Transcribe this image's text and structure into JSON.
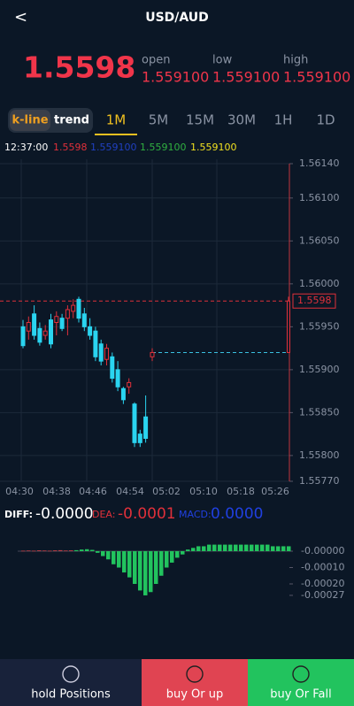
{
  "header": {
    "back": "<",
    "title": "USD/AUD"
  },
  "quote": {
    "price": "1.5598",
    "open_label": "open",
    "low_label": "low",
    "high_label": "high",
    "open": "1.559100",
    "low": "1.559100",
    "high": "1.559100"
  },
  "tabs": {
    "kline": "k-line",
    "trend": "trend",
    "periods": [
      "1M",
      "5M",
      "15M",
      "30M",
      "1H",
      "1D"
    ],
    "active": 0
  },
  "info": {
    "time": "12:37:00",
    "close": "1.5598",
    "ma1": "1.559100",
    "ma2": "1.559100",
    "ma3": "1.559100"
  },
  "kline": {
    "ylim": [
      1.5577,
      1.5614
    ],
    "yticks": [
      {
        "value": 1.5614,
        "label": "1.56140"
      },
      {
        "value": 1.561,
        "label": "1.56100"
      },
      {
        "value": 1.5605,
        "label": "1.56050"
      },
      {
        "value": 1.56,
        "label": "1.56000"
      },
      {
        "value": 1.5595,
        "label": "1.55950"
      },
      {
        "value": 1.559,
        "label": "1.55900"
      },
      {
        "value": 1.5585,
        "label": "1.55850"
      },
      {
        "value": 1.558,
        "label": "1.55800"
      },
      {
        "value": 1.5577,
        "label": "1.55770"
      }
    ],
    "xlabels": [
      "04:30",
      "04:38",
      "04:46",
      "04:54",
      "05:02",
      "05:10",
      "05:18",
      "05:26"
    ],
    "last_price": {
      "value": 1.5598,
      "label": "1.5598"
    },
    "candles": [
      {
        "o": 1.5595,
        "h": 1.55958,
        "l": 1.55925,
        "c": 1.55928
      },
      {
        "o": 1.55945,
        "h": 1.55962,
        "l": 1.55935,
        "c": 1.55955
      },
      {
        "o": 1.55965,
        "h": 1.55975,
        "l": 1.55935,
        "c": 1.5594
      },
      {
        "o": 1.55948,
        "h": 1.55955,
        "l": 1.55928,
        "c": 1.55932
      },
      {
        "o": 1.5594,
        "h": 1.55952,
        "l": 1.55935,
        "c": 1.55945
      },
      {
        "o": 1.55958,
        "h": 1.55965,
        "l": 1.55925,
        "c": 1.5593
      },
      {
        "o": 1.55955,
        "h": 1.55968,
        "l": 1.5594,
        "c": 1.55962
      },
      {
        "o": 1.5596,
        "h": 1.55965,
        "l": 1.55945,
        "c": 1.55948
      },
      {
        "o": 1.5596,
        "h": 1.55975,
        "l": 1.5594,
        "c": 1.5597
      },
      {
        "o": 1.55968,
        "h": 1.55982,
        "l": 1.5596,
        "c": 1.55975
      },
      {
        "o": 1.55982,
        "h": 1.55985,
        "l": 1.55955,
        "c": 1.5596
      },
      {
        "o": 1.55965,
        "h": 1.55972,
        "l": 1.55945,
        "c": 1.5595
      },
      {
        "o": 1.5595,
        "h": 1.5596,
        "l": 1.55935,
        "c": 1.5594
      },
      {
        "o": 1.55945,
        "h": 1.5595,
        "l": 1.5591,
        "c": 1.55915
      },
      {
        "o": 1.5593,
        "h": 1.55935,
        "l": 1.55905,
        "c": 1.5591
      },
      {
        "o": 1.55912,
        "h": 1.5593,
        "l": 1.55905,
        "c": 1.55925
      },
      {
        "o": 1.55915,
        "h": 1.5592,
        "l": 1.55885,
        "c": 1.5589
      },
      {
        "o": 1.559,
        "h": 1.5591,
        "l": 1.55875,
        "c": 1.5588
      },
      {
        "o": 1.55878,
        "h": 1.5588,
        "l": 1.5586,
        "c": 1.55865
      },
      {
        "o": 1.5588,
        "h": 1.5589,
        "l": 1.55872,
        "c": 1.55885
      },
      {
        "o": 1.5586,
        "h": 1.55862,
        "l": 1.5581,
        "c": 1.55815
      },
      {
        "o": 1.55825,
        "h": 1.5583,
        "l": 1.5581,
        "c": 1.55815
      },
      {
        "o": 1.55845,
        "h": 1.5587,
        "l": 1.55815,
        "c": 1.5582
      },
      {
        "o": 1.55915,
        "h": 1.55925,
        "l": 1.5591,
        "c": 1.5592
      }
    ],
    "last_candle": {
      "o": 1.5592,
      "h": 1.55985,
      "l": 1.5592,
      "c": 1.5598
    }
  },
  "macd": {
    "diff_label": "DIFF:",
    "diff": "-0.0000",
    "dea_label": "DEA:",
    "dea": "-0.0001",
    "macd_label": "MACD:",
    "macd": "0.0000",
    "ylim": [
      -0.0003,
      4e-05
    ],
    "yticks": [
      {
        "value": 0,
        "label": "-0.00000"
      },
      {
        "value": -0.0001,
        "label": "-0.00010"
      },
      {
        "value": -0.0002,
        "label": "-0.00020"
      },
      {
        "value": -0.00027,
        "label": "-0.00027"
      }
    ],
    "bars": [
      3e-06,
      4e-06,
      3e-06,
      5e-06,
      4e-06,
      3e-06,
      5e-06,
      6e-06,
      4e-06,
      5e-06,
      6e-06,
      1e-05,
      1.2e-05,
      8e-06,
      -1e-05,
      -3e-05,
      -5e-05,
      -8e-05,
      -0.0001,
      -0.00013,
      -0.00016,
      -0.0002,
      -0.00024,
      -0.00027,
      -0.00025,
      -0.0002,
      -0.00015,
      -0.0001,
      -7e-05,
      -4e-05,
      -2e-05,
      1e-05,
      2e-05,
      3e-05,
      3e-05,
      4e-05,
      4e-05,
      4e-05,
      4e-05,
      4e-05,
      4e-05,
      4e-05,
      4e-05,
      4e-05,
      4e-05,
      4e-05,
      4e-05,
      3e-05,
      3e-05,
      3e-05,
      3e-05
    ]
  },
  "footer": {
    "hold": "hold Positions",
    "up": "buy Or up",
    "fall": "buy Or Fall"
  }
}
